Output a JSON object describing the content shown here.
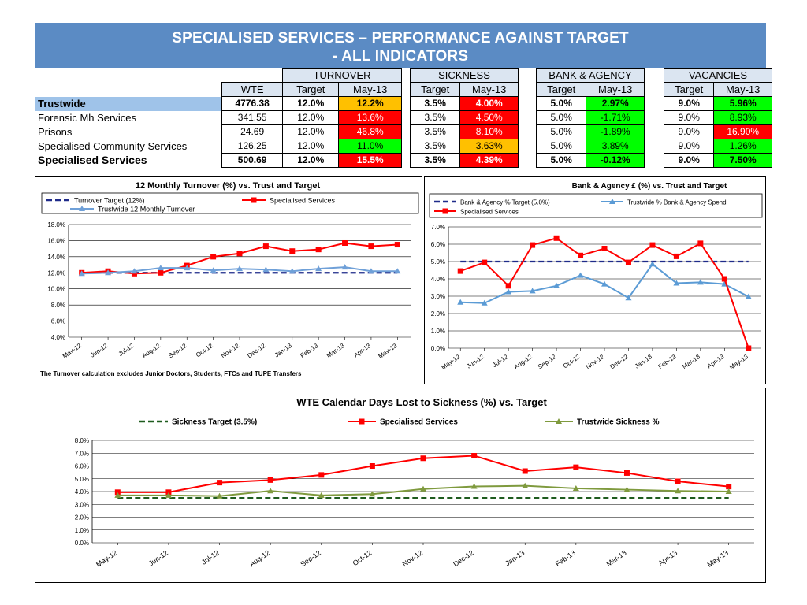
{
  "header": {
    "title_line1": "SPECIALISED SERVICES – PERFORMANCE AGAINST TARGET",
    "title_line2": "- ALL INDICATORS"
  },
  "kpi_table": {
    "group_headers": [
      "TURNOVER",
      "SICKNESS",
      "BANK & AGENCY",
      "VACANCIES"
    ],
    "col_wte": "WTE",
    "col_target": "Target",
    "col_month": "May-13",
    "rows": [
      {
        "name": "Trustwide",
        "wte": "4776.38",
        "bold": true,
        "vals": [
          [
            "12.0%",
            "12.2%",
            "amber"
          ],
          [
            "3.5%",
            "4.00%",
            "red"
          ],
          [
            "5.0%",
            "2.97%",
            "green"
          ],
          [
            "9.0%",
            "5.96%",
            "green"
          ]
        ]
      },
      {
        "name": "Forensic Mh Services",
        "wte": "341.55",
        "bold": false,
        "vals": [
          [
            "12.0%",
            "13.6%",
            "red"
          ],
          [
            "3.5%",
            "4.50%",
            "red"
          ],
          [
            "5.0%",
            "-1.71%",
            "green"
          ],
          [
            "9.0%",
            "8.93%",
            "green"
          ]
        ]
      },
      {
        "name": "Prisons",
        "wte": "24.69",
        "bold": false,
        "vals": [
          [
            "12.0%",
            "46.8%",
            "red"
          ],
          [
            "3.5%",
            "8.10%",
            "red"
          ],
          [
            "5.0%",
            "-1.89%",
            "green"
          ],
          [
            "9.0%",
            "16.90%",
            "red"
          ]
        ]
      },
      {
        "name": "Specialised Community Services",
        "wte": "126.25",
        "bold": false,
        "vals": [
          [
            "12.0%",
            "11.0%",
            "green"
          ],
          [
            "3.5%",
            "3.63%",
            "amber"
          ],
          [
            "5.0%",
            "3.89%",
            "green"
          ],
          [
            "9.0%",
            "1.26%",
            "green"
          ]
        ]
      },
      {
        "name": "Specialised Services",
        "wte": "500.69",
        "bold": true,
        "vals": [
          [
            "12.0%",
            "15.5%",
            "red"
          ],
          [
            "3.5%",
            "4.39%",
            "red"
          ],
          [
            "5.0%",
            "-0.12%",
            "green"
          ],
          [
            "9.0%",
            "7.50%",
            "green"
          ]
        ]
      }
    ]
  },
  "colors": {
    "red": "#ff0000",
    "blue": "#5b9bd5",
    "navy": "#1f2b8a",
    "olive": "#7f9a3e",
    "darkgreen": "#1e5b1e"
  },
  "chart_data": [
    {
      "type": "line",
      "title": "12 Monthly Turnover (%) vs. Trust and Target",
      "footnote": "The Turnover calculation excludes Junior Doctors, Students, FTCs and TUPE Transfers",
      "x": [
        "May-12",
        "Jun-12",
        "Jul-12",
        "Aug-12",
        "Sep-12",
        "Oct-12",
        "Nov-12",
        "Dec-12",
        "Jan-13",
        "Feb-13",
        "Mar-13",
        "Apr-13",
        "May-13"
      ],
      "ylim": [
        4,
        18
      ],
      "ystep": 2,
      "yfmt": 1,
      "legend_position": "top",
      "series": [
        {
          "name": "Turnover Target (12%)",
          "style": "dash",
          "color": "#1f2b8a",
          "values": [
            12,
            12,
            12,
            12,
            12,
            12,
            12,
            12,
            12,
            12,
            12,
            12,
            12
          ]
        },
        {
          "name": "Specialised Services",
          "style": "square",
          "color": "#ff0000",
          "values": [
            12.0,
            12.2,
            11.9,
            12.0,
            12.9,
            14.0,
            14.4,
            15.3,
            14.7,
            14.9,
            15.7,
            15.3,
            15.5
          ]
        },
        {
          "name": "Trustwide 12 Monthly Turnover",
          "style": "triangle",
          "color": "#6fa0d8",
          "values": [
            11.9,
            12.0,
            12.2,
            12.6,
            12.6,
            12.3,
            12.5,
            12.4,
            12.2,
            12.5,
            12.7,
            12.2,
            12.2
          ]
        }
      ]
    },
    {
      "type": "line",
      "title": "Bank & Agency £ (%) vs. Trust and Target",
      "x": [
        "May-12",
        "Jun-12",
        "Jul-12",
        "Aug-12",
        "Sep-12",
        "Oct-12",
        "Nov-12",
        "Dec-12",
        "Jan-13",
        "Feb-13",
        "Mar-13",
        "Apr-13",
        "May-13"
      ],
      "ylim": [
        0,
        7
      ],
      "ystep": 1,
      "yfmt": 1,
      "legend_position": "top",
      "series": [
        {
          "name": "Bank & Agency % Target (5.0%)",
          "style": "dash",
          "color": "#1f2b8a",
          "values": [
            5,
            5,
            5,
            5,
            5,
            5,
            5,
            5,
            5,
            5,
            5,
            5,
            5
          ]
        },
        {
          "name": "Trustwide % Bank & Agency Spend",
          "style": "triangle",
          "color": "#5b9bd5",
          "values": [
            2.65,
            2.6,
            3.25,
            3.3,
            3.6,
            4.2,
            3.7,
            2.9,
            4.85,
            3.75,
            3.8,
            3.7,
            2.97
          ]
        },
        {
          "name": "Specialised Services",
          "style": "square",
          "color": "#ff0000",
          "values": [
            4.45,
            4.95,
            3.6,
            5.95,
            6.35,
            5.35,
            5.75,
            4.95,
            5.95,
            5.3,
            6.05,
            4.0,
            -0.12
          ]
        }
      ]
    },
    {
      "type": "line",
      "title": "WTE Calendar Days Lost to Sickness (%) vs. Target",
      "x": [
        "May-12",
        "Jun-12",
        "Jul-12",
        "Aug-12",
        "Sep-12",
        "Oct-12",
        "Nov-12",
        "Dec-12",
        "Jan-13",
        "Feb-13",
        "Mar-13",
        "Apr-13",
        "May-13"
      ],
      "ylim": [
        0,
        8
      ],
      "ystep": 1,
      "yfmt": 1,
      "legend_position": "top",
      "series": [
        {
          "name": "Sickness Target (3.5%)",
          "style": "dash",
          "color": "#1e5b1e",
          "values": [
            3.5,
            3.5,
            3.5,
            3.5,
            3.5,
            3.5,
            3.5,
            3.5,
            3.5,
            3.5,
            3.5,
            3.5,
            3.5
          ]
        },
        {
          "name": "Specialised Services",
          "style": "square",
          "color": "#ff0000",
          "values": [
            3.95,
            3.95,
            4.7,
            4.9,
            5.3,
            6.0,
            6.6,
            6.8,
            5.6,
            5.9,
            5.45,
            4.8,
            4.39
          ]
        },
        {
          "name": "Trustwide Sickness %",
          "style": "triangle",
          "color": "#7f9a3e",
          "values": [
            3.7,
            3.7,
            3.65,
            4.05,
            3.7,
            3.8,
            4.2,
            4.4,
            4.45,
            4.25,
            4.15,
            4.05,
            4.0
          ]
        }
      ]
    }
  ]
}
